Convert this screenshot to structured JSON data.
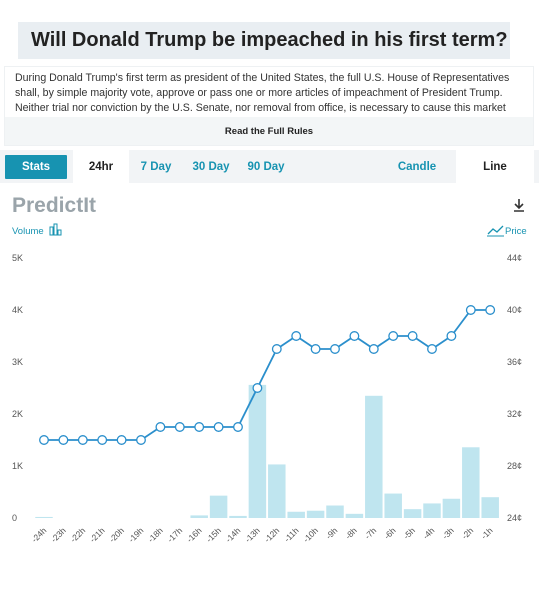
{
  "header": {
    "title": "Will Donald Trump be impeached in his first term?"
  },
  "rules": {
    "text": "During Donald Trump's first term as president of the United States, the full U.S. House of Representatives shall, by simple majority vote, approve or pass one or more articles of impeachment of President Trump. Neither trial nor conviction by the U.S. Senate, nor removal from office, is necessary to cause this market",
    "link_label": "Read the Full Rules"
  },
  "tabs": {
    "stats": "Stats",
    "hr24": "24hr",
    "day7": "7 Day",
    "day30": "30 Day",
    "day90": "90 Day",
    "candle": "Candle",
    "line": "Line",
    "active": "24hr",
    "view": "Line"
  },
  "chart": {
    "brand": "PredictIt",
    "volume_label": "Volume",
    "price_label": "Price",
    "colors": {
      "accent": "#1793b1",
      "bar": "#bfe5ef",
      "line": "#2b8fcc",
      "axis": "#555555",
      "brand": "#9aa4aa"
    }
  },
  "chart_data": {
    "type": "line",
    "categories": [
      "-24h",
      "-23h",
      "-22h",
      "-21h",
      "-20h",
      "-19h",
      "-18h",
      "-17h",
      "-16h",
      "-15h",
      "-14h",
      "-13h",
      "-12h",
      "-11h",
      "-10h",
      "-9h",
      "-8h",
      "-7h",
      "-6h",
      "-5h",
      "-4h",
      "-3h",
      "-2h",
      "-1h"
    ],
    "series": [
      {
        "name": "Volume",
        "type": "bar",
        "axis": "left",
        "values": [
          20,
          0,
          0,
          0,
          0,
          0,
          0,
          0,
          50,
          430,
          40,
          2560,
          1030,
          120,
          140,
          240,
          80,
          2350,
          470,
          170,
          280,
          370,
          1360,
          400
        ]
      },
      {
        "name": "Price",
        "type": "line",
        "axis": "right",
        "values": [
          30,
          30,
          30,
          30,
          30,
          30,
          31,
          31,
          31,
          31,
          31,
          34,
          37,
          38,
          37,
          37,
          38,
          37,
          38,
          38,
          37,
          38,
          40,
          40
        ]
      }
    ],
    "y_left": {
      "ticks": [
        "0",
        "1K",
        "2K",
        "3K",
        "4K",
        "5K"
      ],
      "range": [
        0,
        5000
      ]
    },
    "y_right": {
      "ticks": [
        "24¢",
        "28¢",
        "32¢",
        "36¢",
        "40¢",
        "44¢"
      ],
      "range": [
        24,
        44
      ]
    }
  }
}
